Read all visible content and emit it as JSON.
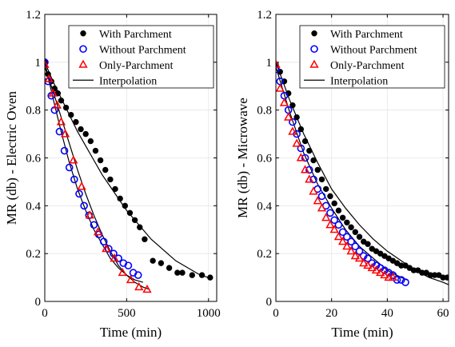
{
  "chart_data": [
    {
      "type": "scatter",
      "xlabel": "Time (min)",
      "ylabel": "MR (db) - Electric Oven",
      "xlim": [
        0,
        1050
      ],
      "ylim": [
        0,
        1.2
      ],
      "xticks": [
        0,
        500,
        1000
      ],
      "yticks": [
        0,
        0.2,
        0.4,
        0.6,
        0.8,
        1,
        1.2
      ],
      "ytick_labels": [
        "0",
        "0.2",
        "0.4",
        "0.6",
        "0.8",
        "1",
        "1.2"
      ],
      "grid": true,
      "legend_position": "top-right",
      "series": [
        {
          "name": "With Parchment",
          "marker": "filled-circle",
          "color": "#000000",
          "x": [
            0,
            20,
            40,
            60,
            80,
            100,
            130,
            160,
            190,
            220,
            250,
            280,
            310,
            340,
            370,
            400,
            430,
            460,
            490,
            520,
            550,
            580,
            610,
            660,
            710,
            760,
            810,
            840,
            900,
            960,
            1010
          ],
          "y": [
            1.0,
            0.95,
            0.92,
            0.89,
            0.87,
            0.84,
            0.81,
            0.78,
            0.75,
            0.72,
            0.7,
            0.67,
            0.63,
            0.59,
            0.55,
            0.51,
            0.47,
            0.43,
            0.4,
            0.37,
            0.34,
            0.31,
            0.26,
            0.17,
            0.16,
            0.14,
            0.12,
            0.12,
            0.11,
            0.11,
            0.1
          ]
        },
        {
          "name": "Without Parchment",
          "marker": "open-circle",
          "color": "#0000ff",
          "x": [
            0,
            20,
            40,
            60,
            90,
            120,
            150,
            180,
            210,
            240,
            270,
            300,
            330,
            360,
            390,
            420,
            450,
            480,
            510,
            540,
            570
          ],
          "y": [
            1.0,
            0.92,
            0.86,
            0.8,
            0.71,
            0.63,
            0.56,
            0.51,
            0.45,
            0.4,
            0.36,
            0.32,
            0.28,
            0.25,
            0.22,
            0.2,
            0.18,
            0.16,
            0.15,
            0.12,
            0.11
          ]
        },
        {
          "name": "Only-Parchment",
          "marker": "open-triangle",
          "color": "#ff0000",
          "x": [
            0,
            25,
            50,
            75,
            100,
            125,
            175,
            225,
            275,
            325,
            375,
            425,
            475,
            525,
            575,
            625
          ],
          "y": [
            0.99,
            0.93,
            0.87,
            0.82,
            0.75,
            0.7,
            0.59,
            0.48,
            0.36,
            0.29,
            0.22,
            0.18,
            0.12,
            0.09,
            0.06,
            0.05
          ]
        },
        {
          "name": "Interpolation",
          "marker": "line",
          "color": "#000000",
          "lines": [
            {
              "x": [
                0,
                50,
                100,
                150,
                200,
                250,
                300,
                350,
                400,
                450,
                500,
                550,
                600,
                650,
                700,
                750,
                800,
                850,
                900,
                950,
                1000
              ],
              "y": [
                1.0,
                0.92,
                0.85,
                0.78,
                0.71,
                0.65,
                0.59,
                0.53,
                0.48,
                0.43,
                0.38,
                0.34,
                0.3,
                0.26,
                0.23,
                0.2,
                0.17,
                0.15,
                0.13,
                0.11,
                0.1
              ]
            },
            {
              "x": [
                0,
                50,
                100,
                150,
                200,
                250,
                300,
                350,
                400,
                450,
                500,
                550,
                600
              ],
              "y": [
                1.0,
                0.85,
                0.71,
                0.58,
                0.47,
                0.38,
                0.3,
                0.24,
                0.18,
                0.14,
                0.11,
                0.09,
                0.08
              ]
            },
            {
              "x": [
                0,
                50,
                100,
                150,
                200,
                250,
                300,
                350,
                400,
                450,
                500,
                550,
                600,
                640
              ],
              "y": [
                0.98,
                0.88,
                0.77,
                0.66,
                0.55,
                0.45,
                0.36,
                0.28,
                0.21,
                0.15,
                0.11,
                0.08,
                0.06,
                0.05
              ]
            }
          ]
        }
      ]
    },
    {
      "type": "scatter",
      "xlabel": "Time (min)",
      "ylabel": "MR (db) - Microwave",
      "xlim": [
        0,
        62
      ],
      "ylim": [
        0,
        1.2
      ],
      "xticks": [
        0,
        20,
        40,
        60
      ],
      "yticks": [
        0,
        0.2,
        0.4,
        0.6,
        0.8,
        1,
        1.2
      ],
      "ytick_labels": [
        "0",
        "0.2",
        "0.4",
        "0.6",
        "0.8",
        "1",
        "1.2"
      ],
      "grid": true,
      "legend_position": "top-right",
      "series": [
        {
          "name": "With Parchment",
          "marker": "filled-circle",
          "color": "#000000",
          "x": [
            0,
            1.5,
            3,
            4.5,
            6,
            7.5,
            9,
            10.5,
            12,
            13.5,
            15,
            16.5,
            18,
            19.5,
            21,
            22.5,
            24,
            25.5,
            27,
            28.5,
            30,
            31.5,
            33,
            34.5,
            36,
            37.5,
            39,
            40.5,
            42,
            43.5,
            45,
            46.5,
            48,
            49.5,
            51,
            52.5,
            54,
            55.5,
            57,
            58.5,
            60,
            61.5
          ],
          "y": [
            0.99,
            0.96,
            0.92,
            0.87,
            0.82,
            0.77,
            0.72,
            0.67,
            0.63,
            0.59,
            0.55,
            0.51,
            0.47,
            0.44,
            0.41,
            0.38,
            0.35,
            0.33,
            0.31,
            0.29,
            0.27,
            0.25,
            0.24,
            0.22,
            0.21,
            0.2,
            0.19,
            0.18,
            0.17,
            0.16,
            0.15,
            0.15,
            0.14,
            0.13,
            0.13,
            0.12,
            0.12,
            0.11,
            0.11,
            0.11,
            0.1,
            0.1
          ]
        },
        {
          "name": "Without Parchment",
          "marker": "open-circle",
          "color": "#0000ff",
          "x": [
            0,
            1.5,
            3,
            4.5,
            6,
            7.5,
            9,
            10.5,
            12,
            13.5,
            15,
            16.5,
            18,
            19.5,
            21,
            22.5,
            24,
            25.5,
            27,
            28.5,
            30,
            31.5,
            33,
            34.5,
            36,
            37.5,
            39,
            40.5,
            42,
            43.5,
            45,
            46.5
          ],
          "y": [
            0.97,
            0.92,
            0.86,
            0.8,
            0.75,
            0.7,
            0.64,
            0.6,
            0.55,
            0.51,
            0.47,
            0.44,
            0.4,
            0.37,
            0.34,
            0.32,
            0.29,
            0.27,
            0.25,
            0.23,
            0.21,
            0.19,
            0.18,
            0.16,
            0.15,
            0.14,
            0.13,
            0.12,
            0.11,
            0.09,
            0.09,
            0.08
          ]
        },
        {
          "name": "Only-Parchment",
          "marker": "open-triangle",
          "color": "#ff0000",
          "x": [
            0,
            1.5,
            3,
            4.5,
            6,
            7.5,
            9,
            10.5,
            12,
            13.5,
            15,
            16.5,
            18,
            19.5,
            21,
            22.5,
            24,
            25.5,
            27,
            28.5,
            30,
            31.5,
            33,
            34.5,
            36,
            37.5,
            39,
            40.5,
            42
          ],
          "y": [
            0.99,
            0.89,
            0.83,
            0.77,
            0.71,
            0.66,
            0.6,
            0.55,
            0.51,
            0.46,
            0.42,
            0.39,
            0.35,
            0.32,
            0.3,
            0.27,
            0.25,
            0.23,
            0.21,
            0.19,
            0.18,
            0.16,
            0.15,
            0.14,
            0.13,
            0.12,
            0.11,
            0.1,
            0.1
          ]
        },
        {
          "name": "Interpolation",
          "marker": "line",
          "color": "#000000",
          "lines": [
            {
              "x": [
                0,
                5,
                10,
                15,
                20,
                25,
                30,
                35,
                40,
                45,
                50,
                55,
                60,
                62
              ],
              "y": [
                1.0,
                0.84,
                0.7,
                0.58,
                0.47,
                0.39,
                0.32,
                0.26,
                0.21,
                0.17,
                0.13,
                0.1,
                0.08,
                0.07
              ]
            },
            {
              "x": [
                0,
                5,
                10,
                15,
                20,
                25,
                30,
                35,
                40,
                45,
                47
              ],
              "y": [
                0.98,
                0.79,
                0.62,
                0.49,
                0.39,
                0.3,
                0.23,
                0.18,
                0.13,
                0.1,
                0.09
              ]
            }
          ]
        }
      ]
    }
  ]
}
